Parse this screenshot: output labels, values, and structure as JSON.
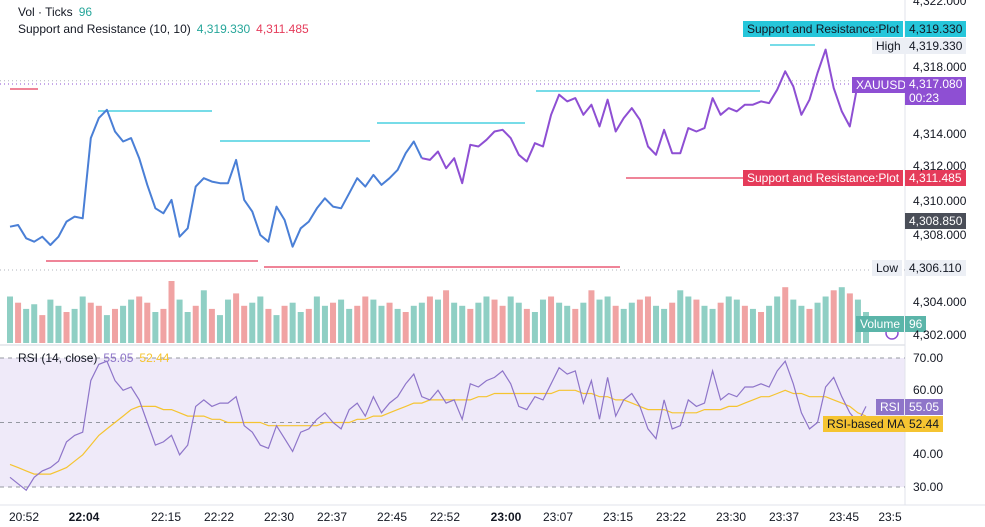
{
  "legend": {
    "volume_label": "Vol · Ticks",
    "volume_value": "96",
    "sr_label": "Support and Resistance (10, 10)",
    "sr_value_1": "4,319.330",
    "sr_value_2": "4,311.485",
    "rsi_label": "RSI (14, close)",
    "rsi_value": "55.05",
    "rsi_ma_value": "52.44"
  },
  "badges": {
    "sr_top_label": "Support and Resistance:Plot",
    "sr_top_value": "4,319.330",
    "high_label": "High",
    "high_value": "4,319.330",
    "symbol": "XAUUSD",
    "price": "4,317.080",
    "countdown": "00:23",
    "sr_bottom_label": "Support and Resistance:Plot",
    "sr_bottom_value": "4,311.485",
    "crosshair_value": "4,308.850",
    "low_label": "Low",
    "low_value": "4,306.110",
    "volume_label": "Volume",
    "volume_value": "96",
    "rsi_label": "RSI",
    "rsi_value": "55.05",
    "rsi_ma_label": "RSI-based MA",
    "rsi_ma_value": "52.44"
  },
  "price_axis": [
    "4,322.000",
    "4,318.000",
    "4,314.000",
    "4,312.000",
    "4,310.000",
    "4,308.000",
    "4,304.000",
    "4,302.000"
  ],
  "rsi_axis": [
    "70.00",
    "60.00",
    "40.00",
    "30.00"
  ],
  "time_axis": [
    {
      "t": "20:52",
      "bold": false
    },
    {
      "t": "22:04",
      "bold": true
    },
    {
      "t": "22:15",
      "bold": false
    },
    {
      "t": "22:22",
      "bold": false
    },
    {
      "t": "22:30",
      "bold": false
    },
    {
      "t": "22:37",
      "bold": false
    },
    {
      "t": "22:45",
      "bold": false
    },
    {
      "t": "22:52",
      "bold": false
    },
    {
      "t": "23:00",
      "bold": true
    },
    {
      "t": "23:07",
      "bold": false
    },
    {
      "t": "23:15",
      "bold": false
    },
    {
      "t": "23:22",
      "bold": false
    },
    {
      "t": "23:30",
      "bold": false
    },
    {
      "t": "23:37",
      "bold": false
    },
    {
      "t": "23:45",
      "bold": false
    },
    {
      "t": "23:5",
      "bold": false
    }
  ],
  "colors": {
    "price_line_early": "#4a7fd6",
    "price_line_late": "#8e4fd3",
    "resistance": "#26c6da",
    "support": "#e53b5a",
    "volume_up": "#8fcfc4",
    "volume_down": "#f0a3a3",
    "rsi_line": "#8e75c9",
    "rsi_ma": "#f5c431",
    "rsi_band": "#efeaf9"
  },
  "chart_data": [
    {
      "type": "line",
      "title": "XAUUSD",
      "ylabel": "",
      "y_range": [
        4302.0,
        4322.0
      ],
      "price_series": [
        4308.5,
        4308.6,
        4307.8,
        4307.6,
        4307.9,
        4307.4,
        4307.9,
        4308.8,
        4309.1,
        4309.0,
        4313.8,
        4315.0,
        4315.5,
        4314.2,
        4313.6,
        4313.8,
        4312.6,
        4311.0,
        4309.6,
        4309.3,
        4310.1,
        4307.9,
        4308.4,
        4310.9,
        4311.4,
        4311.2,
        4311.1,
        4311.1,
        4312.5,
        4310.1,
        4309.4,
        4308.0,
        4307.6,
        4309.7,
        4308.9,
        4307.3,
        4308.4,
        4308.8,
        4309.6,
        4310.2,
        4309.7,
        4309.6,
        4310.5,
        4311.4,
        4310.9,
        4311.6,
        4311.0,
        4311.4,
        4311.9,
        4312.9,
        4313.6,
        4312.6,
        4312.5,
        4313.0,
        4312.0,
        4312.6,
        4311.1,
        4313.4,
        4313.3,
        4313.7,
        4314.2,
        4314.3,
        4313.8,
        4312.8,
        4312.4,
        4313.5,
        4313.3,
        4315.2,
        4316.4,
        4316.0,
        4316.2,
        4315.2,
        4315.8,
        4314.5,
        4316.1,
        4314.2,
        4315.0,
        4315.6,
        4314.9,
        4313.3,
        4312.8,
        4314.3,
        4312.9,
        4312.9,
        4314.4,
        4314.2,
        4314.4,
        4316.2,
        4315.2,
        4315.6,
        4315.4,
        4315.8,
        4315.8,
        4316.0,
        4315.9,
        4316.7,
        4317.8,
        4316.9,
        4315.2,
        4316.1,
        4317.7,
        4319.1,
        4316.8,
        4315.4,
        4314.5,
        4317.1,
        4317.1
      ],
      "resistance_segments": [
        {
          "start": 4319.33,
          "value": 4319.33
        },
        {
          "value": 4315.5
        },
        {
          "value": 4313.8
        },
        {
          "value": 4314.8
        },
        {
          "value": 4316.6
        },
        {
          "value": 4319.33
        }
      ],
      "support_segments": [
        {
          "value": 4317.2
        },
        {
          "value": 4307.3
        },
        {
          "value": 4306.2
        },
        {
          "value": 4311.485
        }
      ],
      "high": 4319.33,
      "low": 4306.11,
      "last": 4317.08
    },
    {
      "type": "bar",
      "title": "Volume",
      "last": 96,
      "volume_values": [
        30,
        26,
        22,
        25,
        18,
        28,
        24,
        20,
        22,
        30,
        26,
        24,
        18,
        22,
        24,
        28,
        30,
        26,
        20,
        22,
        40,
        28,
        20,
        24,
        34,
        22,
        18,
        28,
        32,
        24,
        26,
        30,
        22,
        18,
        24,
        26,
        20,
        22,
        30,
        24,
        26,
        28,
        22,
        24,
        30,
        28,
        24,
        26,
        22,
        20,
        24,
        26,
        30,
        28,
        34,
        26,
        24,
        22,
        26,
        30,
        28,
        24,
        30,
        26,
        22,
        20,
        28,
        30,
        26,
        24,
        22,
        26,
        34,
        28,
        30,
        24,
        22,
        26,
        28,
        30,
        24,
        22,
        26,
        34,
        30,
        28,
        24,
        22,
        26,
        30,
        28,
        24,
        22,
        20,
        24,
        30,
        36,
        28,
        24,
        22,
        26,
        30,
        34,
        36,
        32,
        28,
        20
      ],
      "volume_direction": [
        1,
        0,
        1,
        1,
        0,
        1,
        1,
        0,
        1,
        1,
        0,
        0,
        1,
        0,
        1,
        1,
        0,
        0,
        1,
        0,
        0,
        1,
        1,
        0,
        1,
        0,
        1,
        1,
        0,
        0,
        1,
        1,
        0,
        1,
        0,
        1,
        1,
        0,
        1,
        1,
        0,
        1,
        1,
        0,
        0,
        1,
        1,
        0,
        1,
        0,
        1,
        1,
        0,
        1,
        0,
        1,
        1,
        0,
        1,
        1,
        0,
        0,
        1,
        1,
        0,
        1,
        1,
        0,
        1,
        1,
        0,
        1,
        0,
        1,
        1,
        0,
        1,
        1,
        0,
        0,
        1,
        1,
        0,
        1,
        1,
        0,
        1,
        1,
        0,
        1,
        1,
        0,
        1,
        0,
        1,
        1,
        0,
        1,
        1,
        0,
        1,
        1,
        0,
        1,
        0,
        1,
        1
      ]
    },
    {
      "type": "line",
      "title": "RSI (14, close)",
      "y_range": [
        27,
        72
      ],
      "levels": [
        70,
        50,
        30
      ],
      "rsi_values": [
        33,
        31,
        29,
        33,
        35,
        36,
        38,
        44,
        46,
        47,
        63,
        68,
        69,
        63,
        60,
        61,
        57,
        50,
        43,
        44,
        46,
        40,
        43,
        55,
        57,
        55,
        56,
        56,
        58,
        49,
        47,
        43,
        42,
        49,
        45,
        41,
        47,
        48,
        51,
        53,
        50,
        48,
        54,
        56,
        52,
        58,
        53,
        56,
        58,
        62,
        65,
        58,
        57,
        60,
        56,
        57,
        51,
        62,
        61,
        63,
        64,
        66,
        62,
        55,
        54,
        58,
        57,
        62,
        67,
        65,
        66,
        56,
        63,
        51,
        64,
        52,
        57,
        59,
        55,
        48,
        45,
        57,
        48,
        49,
        57,
        55,
        56,
        66,
        57,
        59,
        58,
        61,
        61,
        62,
        61,
        66,
        69,
        62,
        53,
        48,
        50,
        61,
        64,
        58,
        53,
        50,
        55
      ],
      "rsi_ma_values": [
        37,
        36,
        35,
        34,
        34,
        34,
        35,
        36,
        38,
        40,
        43,
        46,
        48,
        50,
        52,
        54,
        55,
        55,
        55,
        54,
        54,
        53,
        52,
        52,
        52,
        51,
        51,
        50,
        50,
        50,
        50,
        50,
        49,
        49,
        49,
        49,
        49,
        49,
        49,
        50,
        50,
        50,
        50,
        51,
        51,
        52,
        52,
        53,
        54,
        55,
        56,
        56,
        57,
        57,
        57,
        57,
        57,
        57,
        58,
        58,
        59,
        59,
        59,
        59,
        59,
        59,
        59,
        59,
        60,
        60,
        60,
        59,
        59,
        58,
        58,
        57,
        57,
        56,
        55,
        54,
        54,
        54,
        53,
        53,
        53,
        53,
        54,
        54,
        54,
        55,
        55,
        56,
        57,
        58,
        58,
        59,
        60,
        59,
        59,
        58,
        58,
        58,
        57,
        56,
        55,
        53,
        52
      ]
    }
  ]
}
